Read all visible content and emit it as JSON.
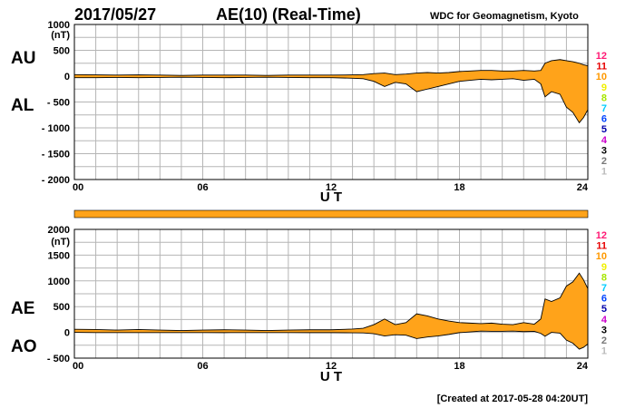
{
  "header": {
    "date": "2017/05/27",
    "title": "AE(10) (Real-Time)",
    "source": "WDC for Geomagnetism, Kyoto",
    "created": "[Created at 2017-05-28 04:20UT]"
  },
  "colors": {
    "fill": "#ffa31a",
    "line": "#000000",
    "grid": "#b5b5b5"
  },
  "station_count_legend": [
    {
      "label": "12",
      "color": "#ff1a75"
    },
    {
      "label": "11",
      "color": "#e60000"
    },
    {
      "label": "10",
      "color": "#ff9900"
    },
    {
      "label": "9",
      "color": "#f0f000"
    },
    {
      "label": "8",
      "color": "#a6e600"
    },
    {
      "label": "7",
      "color": "#00ccff"
    },
    {
      "label": "6",
      "color": "#0044ff"
    },
    {
      "label": "5",
      "color": "#0000aa"
    },
    {
      "label": "4",
      "color": "#cc00cc"
    },
    {
      "label": "3",
      "color": "#000000"
    },
    {
      "label": "2",
      "color": "#777777"
    },
    {
      "label": "1",
      "color": "#bbbbbb"
    }
  ],
  "station_bar": {
    "count": 10,
    "color": "#ffa31a"
  },
  "chart_data": [
    {
      "type": "area",
      "name": "AU-AL",
      "side_labels": [
        "AU",
        "AL"
      ],
      "xlabel": "U T",
      "ylabel": "(nT)",
      "xlim": [
        0,
        24
      ],
      "ylim": [
        -2000,
        1000
      ],
      "x_ticks": [
        "00",
        "06",
        "12",
        "18",
        "24"
      ],
      "y_ticks": [
        "1000",
        "500",
        "0",
        "- 500",
        "- 1000",
        "- 1500",
        "- 2000"
      ],
      "x": [
        0,
        1,
        2,
        3,
        4,
        5,
        6,
        7,
        8,
        9,
        10,
        11,
        12,
        13,
        13.5,
        14,
        14.5,
        15,
        15.5,
        16,
        16.5,
        17,
        17.5,
        18,
        18.5,
        19,
        19.5,
        20,
        20.5,
        21,
        21.5,
        21.8,
        22,
        22.3,
        22.7,
        23,
        23.3,
        23.6,
        23.8,
        24
      ],
      "series": [
        {
          "name": "AU",
          "values": [
            30,
            25,
            20,
            25,
            20,
            15,
            20,
            20,
            20,
            15,
            20,
            20,
            20,
            25,
            30,
            50,
            60,
            30,
            40,
            60,
            70,
            60,
            70,
            90,
            100,
            110,
            110,
            100,
            100,
            110,
            100,
            110,
            250,
            300,
            320,
            300,
            280,
            250,
            220,
            200
          ]
        },
        {
          "name": "AL",
          "values": [
            -30,
            -30,
            -25,
            -30,
            -25,
            -20,
            -25,
            -30,
            -25,
            -20,
            -25,
            -30,
            -30,
            -40,
            -50,
            -100,
            -200,
            -120,
            -150,
            -300,
            -250,
            -200,
            -150,
            -100,
            -80,
            -60,
            -70,
            -60,
            -50,
            -80,
            -60,
            -150,
            -400,
            -300,
            -350,
            -600,
            -700,
            -900,
            -800,
            -650
          ]
        }
      ]
    },
    {
      "type": "area",
      "name": "AE-AO",
      "side_labels": [
        "AE",
        "AO"
      ],
      "xlabel": "U T",
      "ylabel": "(nT)",
      "xlim": [
        0,
        24
      ],
      "ylim": [
        -500,
        2000
      ],
      "x_ticks": [
        "00",
        "06",
        "12",
        "18",
        "24"
      ],
      "y_ticks": [
        "2000",
        "1500",
        "1000",
        "500",
        "0",
        "- 500"
      ],
      "x": [
        0,
        1,
        2,
        3,
        4,
        5,
        6,
        7,
        8,
        9,
        10,
        11,
        12,
        13,
        13.5,
        14,
        14.5,
        15,
        15.5,
        16,
        16.5,
        17,
        17.5,
        18,
        18.5,
        19,
        19.5,
        20,
        20.5,
        21,
        21.5,
        21.8,
        22,
        22.3,
        22.7,
        23,
        23.3,
        23.6,
        23.8,
        24
      ],
      "series": [
        {
          "name": "AE",
          "values": [
            60,
            55,
            45,
            55,
            45,
            35,
            45,
            50,
            45,
            35,
            45,
            50,
            50,
            65,
            80,
            150,
            260,
            150,
            190,
            360,
            320,
            260,
            220,
            190,
            180,
            170,
            180,
            160,
            150,
            190,
            160,
            260,
            650,
            600,
            670,
            900,
            980,
            1150,
            1020,
            850
          ]
        },
        {
          "name": "AO",
          "values": [
            0,
            -3,
            -3,
            -3,
            -3,
            -3,
            -3,
            -5,
            -3,
            -3,
            -3,
            -5,
            -5,
            -8,
            -10,
            -25,
            -70,
            -45,
            -55,
            -120,
            -90,
            -70,
            -40,
            -5,
            10,
            25,
            20,
            20,
            25,
            15,
            20,
            -20,
            -75,
            0,
            -15,
            -150,
            -210,
            -325,
            -290,
            -225
          ]
        }
      ]
    }
  ]
}
